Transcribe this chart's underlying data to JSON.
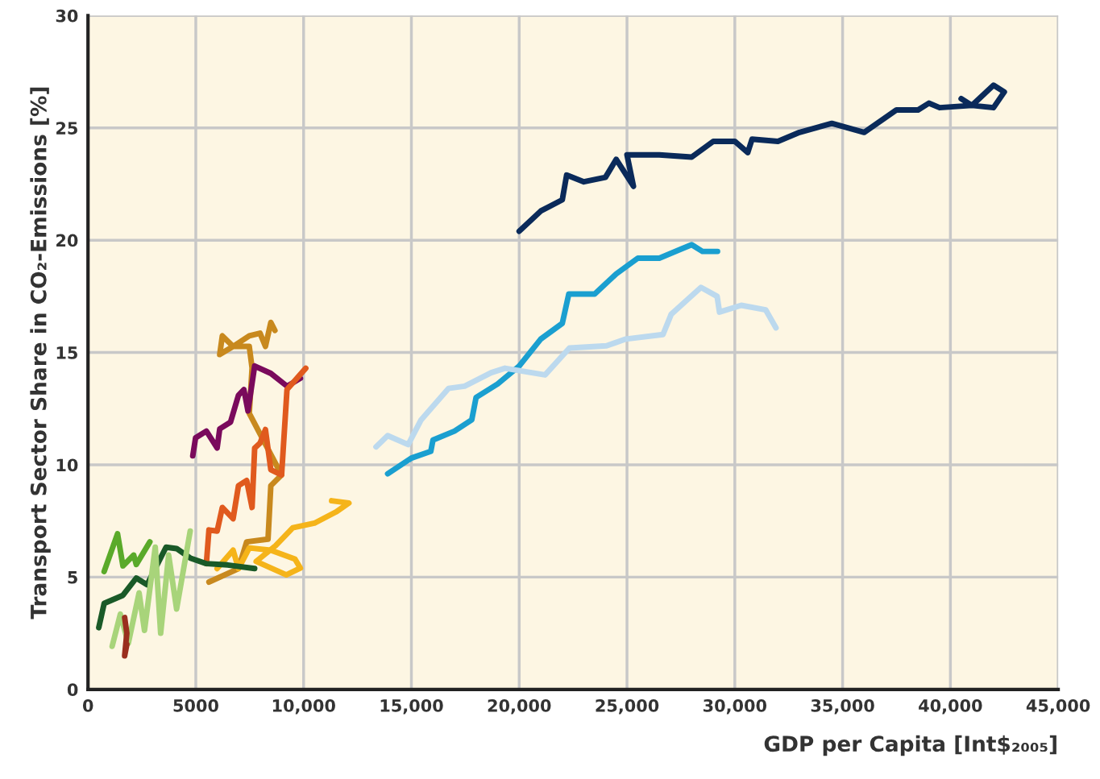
{
  "chart_data": {
    "type": "line",
    "xlabel": "GDP per Capita [Int$₂₀₀₅]",
    "ylabel": "Transport Sector Share in CO₂-Emissions [%]",
    "xlim": [
      0,
      45000
    ],
    "ylim": [
      0,
      30
    ],
    "xticks": [
      0,
      5000,
      {
        "value": 10000,
        "label": "10,000"
      },
      {
        "value": 15000,
        "label": "15,000"
      },
      {
        "value": 20000,
        "label": "20,000"
      },
      {
        "value": 25000,
        "label": "25,000"
      },
      {
        "value": 30000,
        "label": "30,000"
      },
      {
        "value": 35000,
        "label": "35,000"
      },
      {
        "value": 40000,
        "label": "40,000"
      },
      {
        "value": 45000,
        "label": "45,000"
      }
    ],
    "yticks": [
      0,
      5,
      10,
      15,
      20,
      25,
      30
    ],
    "grid": true,
    "line_style": "solid",
    "marker": "none",
    "series": [
      {
        "color": "#0a2a5a",
        "x": [
          20000,
          21000,
          22000,
          22200,
          23000,
          24000,
          24500,
          25300,
          25000,
          26500,
          28000,
          29000,
          30000,
          30600,
          30800,
          32000,
          33000,
          34500,
          36000,
          37500,
          38500,
          39000,
          39500,
          41000,
          42000,
          42500,
          42000,
          41000,
          40500
        ],
        "values": [
          20.4,
          21.3,
          21.8,
          22.9,
          22.6,
          22.8,
          23.6,
          22.4,
          23.8,
          23.8,
          23.7,
          24.4,
          24.4,
          23.9,
          24.5,
          24.4,
          24.8,
          25.2,
          24.8,
          25.8,
          25.8,
          26.1,
          25.9,
          26.0,
          26.9,
          26.6,
          25.9,
          26.0,
          26.3
        ]
      },
      {
        "color": "#1a9fd0",
        "x": [
          13900,
          15000,
          15900,
          16000,
          17000,
          17800,
          18000,
          19000,
          20000,
          21000,
          22000,
          22300,
          23500,
          24500,
          25500,
          26500,
          27500,
          28000,
          28500,
          29200
        ],
        "values": [
          9.6,
          10.3,
          10.6,
          11.1,
          11.5,
          12.0,
          13.0,
          13.6,
          14.4,
          15.6,
          16.3,
          17.6,
          17.6,
          18.5,
          19.2,
          19.2,
          19.6,
          19.8,
          19.5,
          19.5
        ]
      },
      {
        "color": "#bcd9ee",
        "x": [
          13360,
          13900,
          14850,
          15450,
          16720,
          17470,
          18700,
          19340,
          21200,
          22330,
          24050,
          24950,
          26670,
          27050,
          28430,
          29180,
          29290,
          30300,
          31430,
          31910
        ],
        "values": [
          10.8,
          11.3,
          10.9,
          12.0,
          13.4,
          13.5,
          14.1,
          14.3,
          14.0,
          15.2,
          15.3,
          15.6,
          15.8,
          16.7,
          17.9,
          17.5,
          16.8,
          17.1,
          16.9,
          16.1
        ]
      },
      {
        "color": "#c8891e",
        "x": [
          5610,
          6980,
          7360,
          8350,
          8480,
          8980,
          7480,
          7610,
          7480,
          6730,
          6230,
          6110,
          6730,
          7480,
          7980,
          8230,
          8480,
          8670
        ],
        "values": [
          4.78,
          5.38,
          6.57,
          6.69,
          9.07,
          9.55,
          12.29,
          14.31,
          15.27,
          15.27,
          15.74,
          14.91,
          15.27,
          15.74,
          15.86,
          15.27,
          16.34,
          15.98
        ]
      },
      {
        "color": "#7a0a5c",
        "x": [
          4860,
          4990,
          5490,
          5990,
          6110,
          6610,
          6980,
          7230,
          7420,
          7730,
          8480,
          9230,
          9850
        ],
        "values": [
          10.4,
          11.2,
          11.5,
          10.75,
          11.6,
          11.9,
          13.1,
          13.35,
          12.4,
          14.4,
          14.07,
          13.5,
          13.85
        ]
      },
      {
        "color": "#e05a1e",
        "x": [
          5490,
          5610,
          5990,
          6230,
          6730,
          6980,
          7360,
          7610,
          7730,
          7980,
          8230,
          8480,
          8980,
          9230,
          10100
        ],
        "values": [
          5.6,
          7.1,
          7.05,
          8.1,
          7.6,
          9.07,
          9.3,
          8.1,
          10.74,
          10.97,
          11.57,
          9.78,
          9.55,
          13.35,
          14.3
        ]
      },
      {
        "color": "#f5b41a",
        "x": [
          5990,
          6730,
          6980,
          7480,
          8480,
          9600,
          9850,
          9200,
          7800,
          8700,
          9500,
          10500,
          11500,
          12100,
          11300
        ],
        "values": [
          5.38,
          6.2,
          5.38,
          6.3,
          6.2,
          5.8,
          5.4,
          5.1,
          5.7,
          6.4,
          7.2,
          7.4,
          7.9,
          8.3,
          8.4
        ]
      },
      {
        "color": "#1a5a28",
        "x": [
          500,
          750,
          1620,
          2240,
          2740,
          3620,
          4110,
          4740,
          5490,
          6480,
          7730
        ],
        "values": [
          2.75,
          3.83,
          4.19,
          4.96,
          4.66,
          6.33,
          6.27,
          5.85,
          5.6,
          5.54,
          5.38
        ]
      },
      {
        "color": "#5aaa2a",
        "x": [
          750,
          1370,
          1620,
          2120,
          2240,
          2870
        ],
        "values": [
          5.25,
          6.93,
          5.5,
          5.98,
          5.56,
          6.57
        ]
      },
      {
        "color": "#a8d47a",
        "x": [
          1120,
          1500,
          1870,
          2370,
          2620,
          3120,
          3370,
          3740,
          4110,
          4740
        ],
        "values": [
          1.92,
          3.35,
          2.05,
          4.3,
          2.63,
          6.33,
          2.5,
          5.98,
          3.58,
          7.05
        ]
      },
      {
        "color": "#9a2e1e",
        "x": [
          1700,
          1800,
          1700,
          1800
        ],
        "values": [
          3.2,
          2.5,
          1.5,
          2.0
        ]
      }
    ]
  }
}
